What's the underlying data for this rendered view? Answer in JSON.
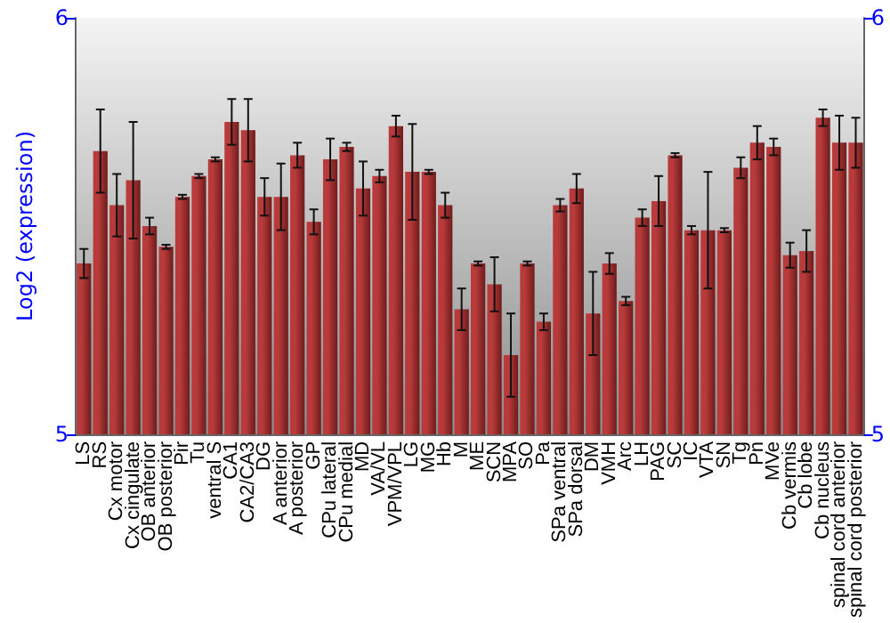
{
  "chart_data": {
    "type": "bar",
    "ylabel": "Log2 (expression)",
    "categories": [
      "LS",
      "RS",
      "Cx motor",
      "Cx cingulate",
      "OB anterior",
      "OB posterior",
      "Pir",
      "Tu",
      "ventral S",
      "CA1",
      "CA2/CA3",
      "DG",
      "A anterior",
      "A posterior",
      "GP",
      "CPu lateral",
      "CPu medial",
      "MD",
      "VA/VL",
      "VPM/VPL",
      "LG",
      "MG",
      "Hb",
      "M",
      "ME",
      "SCN",
      "MPA",
      "SO",
      "Pa",
      "SPa ventral",
      "SPa dorsal",
      "DM",
      "VMH",
      "Arc",
      "LH",
      "PAG",
      "SC",
      "IC",
      "VTA",
      "SN",
      "Tg",
      "Pn",
      "MVe",
      "Cb vermis",
      "Cb lobe",
      "Cb nucleus",
      "spinal cord anterior",
      "spinal cord posterior"
    ],
    "series": [
      {
        "color": "#b83a3a",
        "values": [
          5.41,
          5.68,
          5.55,
          5.61,
          5.5,
          5.45,
          5.57,
          5.62,
          5.66,
          5.75,
          5.73,
          5.57,
          5.57,
          5.67,
          5.51,
          5.66,
          5.69,
          5.59,
          5.62,
          5.74,
          5.63,
          5.63,
          5.55,
          5.3,
          5.41,
          5.36,
          5.19,
          5.41,
          5.27,
          5.55,
          5.59,
          5.29,
          5.41,
          5.32,
          5.52,
          5.56,
          5.67,
          5.49,
          5.49,
          5.49,
          5.64,
          5.7,
          5.69,
          5.43,
          5.44,
          5.76,
          5.7,
          5.7
        ],
        "errors": [
          0.035,
          0.1,
          0.075,
          0.14,
          0.02,
          0.005,
          0.005,
          0.005,
          0.005,
          0.055,
          0.075,
          0.045,
          0.08,
          0.03,
          0.03,
          0.05,
          0.01,
          0.065,
          0.015,
          0.025,
          0.115,
          0.005,
          0.03,
          0.05,
          0.005,
          0.065,
          0.1,
          0.005,
          0.02,
          0.015,
          0.035,
          0.1,
          0.025,
          0.01,
          0.02,
          0.06,
          0.005,
          0.01,
          0.14,
          0.005,
          0.025,
          0.04,
          0.02,
          0.03,
          0.05,
          0.02,
          0.065,
          0.06
        ]
      }
    ],
    "ylim": [
      5,
      6
    ],
    "yticks": [
      5,
      6
    ],
    "y2lim": [
      5,
      6
    ],
    "y2ticks": [
      5,
      6
    ],
    "grid": false
  }
}
